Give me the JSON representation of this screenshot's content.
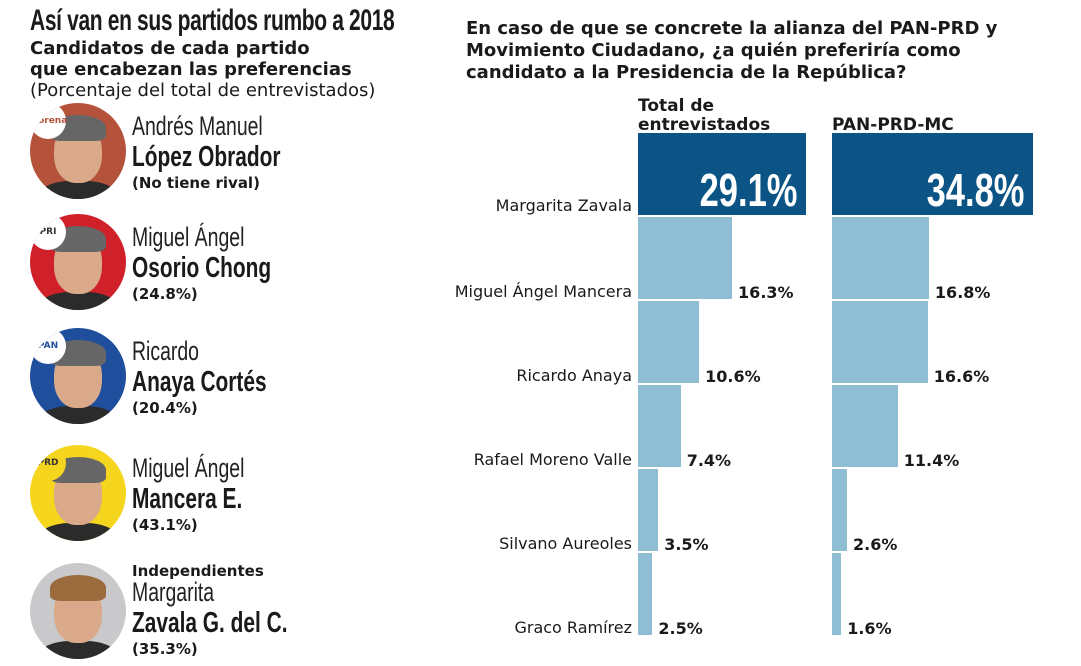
{
  "left_panel": {
    "title": "Así van en sus partidos rumbo a 2018",
    "subtitle_line1": "Candidatos de cada partido",
    "subtitle_line2": "que encabezan las preferencias",
    "subtitle_line3": "(Porcentaje del total de entrevistados)",
    "candidates": [
      {
        "party": "morena",
        "first": "Andrés Manuel",
        "last": "López Obrador",
        "value": "(No tiene rival)",
        "color": "#b5523b"
      },
      {
        "party": "PRI",
        "first": "Miguel Ángel",
        "last": "Osorio Chong",
        "value": "(24.8%)",
        "color": "#d0202a"
      },
      {
        "party": "PAN",
        "first": "Ricardo",
        "last": "Anaya Cortés",
        "value": "(20.4%)",
        "color": "#1f4e9c"
      },
      {
        "party": "PRD",
        "first": "Miguel Ángel",
        "last": "Mancera E.",
        "value": "(43.1%)",
        "color": "#f6d51f"
      },
      {
        "party": "",
        "group": "Independientes",
        "first": "Margarita",
        "last": "Zavala G. del C.",
        "value": "(35.3%)",
        "color": "#c9c9cc"
      }
    ]
  },
  "chart_data": {
    "type": "bar",
    "orientation": "horizontal",
    "title": "En caso de que se concrete la alianza del PAN-PRD y Movimiento Ciudadano, ¿a quién preferiría como candidato a la Presidencia de la República?",
    "categories": [
      "Margarita Zavala",
      "Miguel Ángel Mancera",
      "Ricardo Anaya",
      "Rafael Moreno Valle",
      "Silvano Aureoles",
      "Graco Ramírez"
    ],
    "series": [
      {
        "name": "Total de entrevistados",
        "values": [
          29.1,
          16.3,
          10.6,
          7.4,
          3.5,
          2.5
        ],
        "labels": [
          "29.1%",
          "16.3%",
          "10.6%",
          "7.4%",
          "3.5%",
          "2.5%"
        ]
      },
      {
        "name": "PAN-PRD-MC",
        "values": [
          34.8,
          16.8,
          16.6,
          11.4,
          2.6,
          1.6
        ],
        "labels": [
          "34.8%",
          "16.8%",
          "16.6%",
          "11.4%",
          "2.6%",
          "1.6%"
        ]
      }
    ],
    "colors": {
      "highlight": "#0b5485",
      "bar": "#8fbdd3"
    },
    "grid": false
  }
}
